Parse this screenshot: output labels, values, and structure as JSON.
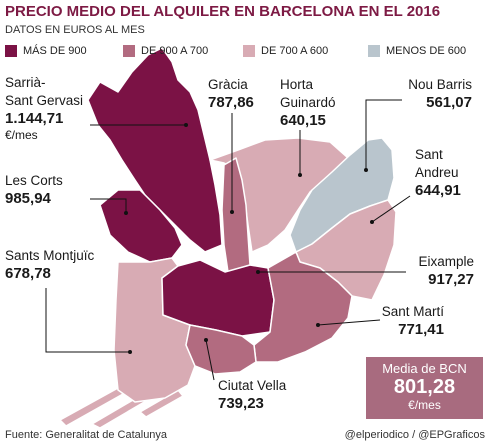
{
  "title": "PRECIO MEDIO DEL ALQUILER EN BARCELONA EN EL 2016",
  "subtitle": "DATOS EN EUROS AL MES",
  "colors": {
    "title": "#7d1a44",
    "leader": "#111111"
  },
  "legend": [
    {
      "label": "MÁS DE 900",
      "color": "#7b1245"
    },
    {
      "label": "DE 900 A 700",
      "color": "#b26b80"
    },
    {
      "label": "DE 700 A 600",
      "color": "#d8abb4"
    },
    {
      "label": "MENOS DE 600",
      "color": "#b9c5cd"
    }
  ],
  "districts": [
    {
      "name_lines": [
        "Sarrià-",
        "Sant Gervasi"
      ],
      "value": "1.144,71",
      "unit": "€/mes",
      "color": "#7b1245"
    },
    {
      "name_lines": [
        "Les Corts"
      ],
      "value": "985,94",
      "color": "#7b1245"
    },
    {
      "name_lines": [
        "Sants Montjuïc"
      ],
      "value": "678,78",
      "color": "#d8abb4"
    },
    {
      "name_lines": [
        "Gràcia"
      ],
      "value": "787,86",
      "color": "#b26b80"
    },
    {
      "name_lines": [
        "Horta",
        "Guinardó"
      ],
      "value": "640,15",
      "color": "#d8abb4"
    },
    {
      "name_lines": [
        "Nou Barris"
      ],
      "value": "561,07",
      "color": "#b9c5cd"
    },
    {
      "name_lines": [
        "Sant",
        "Andreu"
      ],
      "value": "644,91",
      "color": "#d8abb4"
    },
    {
      "name_lines": [
        "Eixample"
      ],
      "value": "917,27",
      "color": "#7b1245"
    },
    {
      "name_lines": [
        "Sant Martí"
      ],
      "value": "771,41",
      "color": "#b26b80"
    },
    {
      "name_lines": [
        "Ciutat Vella"
      ],
      "value": "739,23",
      "color": "#b26b80"
    }
  ],
  "average": {
    "label": "Media de BCN",
    "value": "801,28",
    "unit": "€/mes",
    "color": "#a86b7f"
  },
  "footer": {
    "source": "Fuente: Generalitat de Catalunya",
    "credit": "@elperiodico / @EPGraficos"
  }
}
